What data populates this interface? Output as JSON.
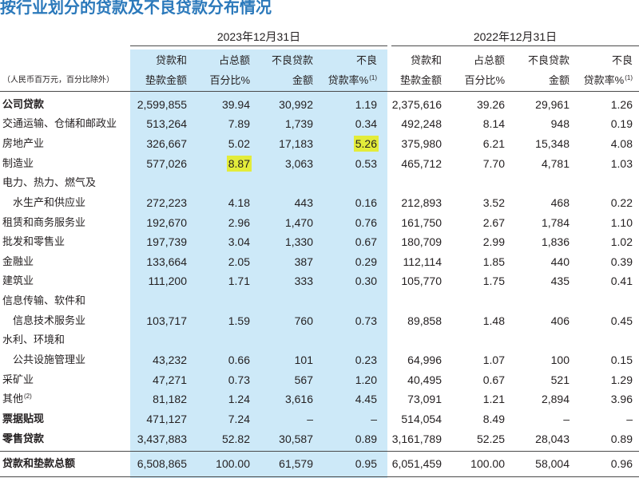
{
  "title": "按行业划分的贷款及不良贷款分布情况",
  "unit_note": "（人民币百万元，百分比除外）",
  "periods": {
    "2023": "2023年12月31日",
    "2022": "2022年12月31日"
  },
  "column_headers": [
    {
      "line1": "贷款和",
      "line2": "垫款金额"
    },
    {
      "line1": "占总额",
      "line2": "百分比%"
    },
    {
      "line1": "不良贷款",
      "line2": "金额"
    },
    {
      "line1": "不良",
      "line2": "贷款率%",
      "note": "(1)"
    }
  ],
  "rows": [
    {
      "label_lines": [
        "公司贷款"
      ],
      "values": {
        "2023": [
          "2,599,855",
          "39.94",
          "30,992",
          "1.19"
        ],
        "2022": [
          "2,375,616",
          "39.26",
          "29,961",
          "1.26"
        ]
      }
    },
    {
      "label_lines": [
        "交通运输、仓储和邮政业"
      ],
      "values": {
        "2023": [
          "513,264",
          "7.89",
          "1,739",
          "0.34"
        ],
        "2022": [
          "492,248",
          "8.14",
          "948",
          "0.19"
        ]
      }
    },
    {
      "label_lines": [
        "房地产业"
      ],
      "values": {
        "2023": [
          "326,667",
          "5.02",
          "17,183",
          "5.26"
        ],
        "2022": [
          "375,980",
          "6.21",
          "15,348",
          "4.08"
        ]
      }
    },
    {
      "label_lines": [
        "制造业"
      ],
      "values": {
        "2023": [
          "577,026",
          "8.87",
          "3,063",
          "0.53"
        ],
        "2022": [
          "465,712",
          "7.70",
          "4,781",
          "1.03"
        ]
      }
    },
    {
      "label_lines": [
        "电力、热力、燃气及",
        "水生产和供应业"
      ],
      "values": {
        "2023": [
          "272,223",
          "4.18",
          "443",
          "0.16"
        ],
        "2022": [
          "212,893",
          "3.52",
          "468",
          "0.22"
        ]
      }
    },
    {
      "label_lines": [
        "租赁和商务服务业"
      ],
      "values": {
        "2023": [
          "192,670",
          "2.96",
          "1,470",
          "0.76"
        ],
        "2022": [
          "161,750",
          "2.67",
          "1,784",
          "1.10"
        ]
      }
    },
    {
      "label_lines": [
        "批发和零售业"
      ],
      "values": {
        "2023": [
          "197,739",
          "3.04",
          "1,330",
          "0.67"
        ],
        "2022": [
          "180,709",
          "2.99",
          "1,836",
          "1.02"
        ]
      }
    },
    {
      "label_lines": [
        "金融业"
      ],
      "values": {
        "2023": [
          "133,664",
          "2.05",
          "387",
          "0.29"
        ],
        "2022": [
          "112,114",
          "1.85",
          "440",
          "0.39"
        ]
      }
    },
    {
      "label_lines": [
        "建筑业"
      ],
      "values": {
        "2023": [
          "111,200",
          "1.71",
          "333",
          "0.30"
        ],
        "2022": [
          "105,770",
          "1.75",
          "435",
          "0.41"
        ]
      }
    },
    {
      "label_lines": [
        "信息传输、软件和",
        "信息技术服务业"
      ],
      "values": {
        "2023": [
          "103,717",
          "1.59",
          "760",
          "0.73"
        ],
        "2022": [
          "89,858",
          "1.48",
          "406",
          "0.45"
        ]
      }
    },
    {
      "label_lines": [
        "水利、环境和",
        "公共设施管理业"
      ],
      "values": {
        "2023": [
          "43,232",
          "0.66",
          "101",
          "0.23"
        ],
        "2022": [
          "64,996",
          "1.07",
          "100",
          "0.15"
        ]
      }
    },
    {
      "label_lines": [
        "采矿业"
      ],
      "values": {
        "2023": [
          "47,271",
          "0.73",
          "567",
          "1.20"
        ],
        "2022": [
          "40,495",
          "0.67",
          "521",
          "1.29"
        ]
      }
    },
    {
      "label_lines": [
        "其他"
      ],
      "note": "(2)",
      "values": {
        "2023": [
          "81,182",
          "1.24",
          "3,616",
          "4.45"
        ],
        "2022": [
          "73,091",
          "1.21",
          "2,894",
          "3.96"
        ]
      }
    },
    {
      "label_lines": [
        "票据贴现"
      ],
      "values": {
        "2023": [
          "471,127",
          "7.24",
          "–",
          "–"
        ],
        "2022": [
          "514,054",
          "8.49",
          "–",
          "–"
        ]
      }
    },
    {
      "label_lines": [
        "零售贷款"
      ],
      "values": {
        "2023": [
          "3,437,883",
          "52.82",
          "30,587",
          "0.89"
        ],
        "2022": [
          "3,161,789",
          "52.25",
          "28,043",
          "0.89"
        ]
      }
    }
  ],
  "total": {
    "label": "贷款和垫款总额",
    "values": {
      "2023": [
        "6,508,865",
        "100.00",
        "61,579",
        "0.95"
      ],
      "2022": [
        "6,051,459",
        "100.00",
        "58,004",
        "0.96"
      ]
    }
  },
  "colors": {
    "title": "#2b79bb",
    "column_highlight": "#cde9f8",
    "marker": "#e3ec3a",
    "text": "#231f20"
  }
}
